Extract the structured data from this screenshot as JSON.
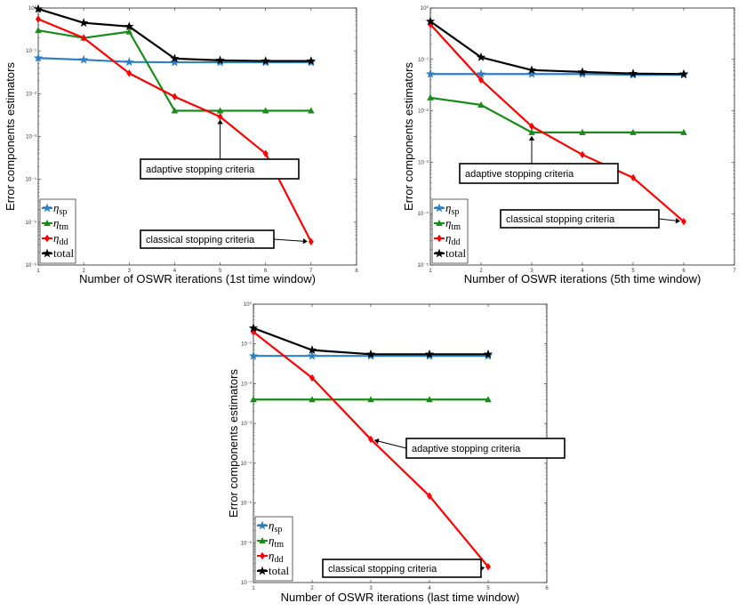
{
  "legend_labels": [
    {
      "symbol": "η",
      "sub": "sp",
      "color": "#2f7fc1",
      "marker": "star"
    },
    {
      "symbol": "η",
      "sub": "tm",
      "color": "#1a8a1a",
      "marker": "triangle"
    },
    {
      "symbol": "η",
      "sub": "dd",
      "color": "#ff0000",
      "marker": "diamond"
    },
    {
      "symbol": "",
      "sub": "total",
      "color": "#000000",
      "marker": "star"
    }
  ],
  "chart_data": [
    {
      "type": "line",
      "xlabel": "Number of OSWR iterations (1st time window)",
      "ylabel": "Error components estimators",
      "yscale": "log",
      "xlim": [
        1,
        8
      ],
      "ylim": [
        1e-06,
        1
      ],
      "x_ticks": [
        "1",
        "2",
        "3",
        "4",
        "5",
        "6",
        "7",
        "8"
      ],
      "y_ticks": [
        "10⁻⁶",
        "10⁻⁵",
        "10⁻⁴",
        "10⁻³",
        "10⁻²",
        "10⁻¹",
        "10⁰"
      ],
      "x": [
        1,
        2,
        3,
        4,
        5,
        6,
        7
      ],
      "series": [
        {
          "name": "sp",
          "values": [
            0.068,
            0.062,
            0.055,
            0.054,
            0.054,
            0.054,
            0.054
          ]
        },
        {
          "name": "tm",
          "values": [
            0.3,
            0.2,
            0.28,
            0.004,
            0.004,
            0.004,
            0.004
          ]
        },
        {
          "name": "dd",
          "values": [
            0.55,
            0.2,
            0.03,
            0.0085,
            0.0029,
            0.0004,
            3.5e-06
          ]
        },
        {
          "name": "total",
          "values": [
            0.95,
            0.45,
            0.37,
            0.066,
            0.06,
            0.058,
            0.058
          ]
        }
      ],
      "annotations": [
        {
          "text": "adaptive stopping criteria",
          "target": [
            5,
            0.003
          ]
        },
        {
          "text": "classical stopping criteria",
          "target": [
            7,
            3.5e-06
          ]
        }
      ]
    },
    {
      "type": "line",
      "xlabel": "Number of OSWR iterations (5th time window)",
      "ylabel": "Error components estimators",
      "yscale": "log",
      "xlim": [
        1,
        7
      ],
      "ylim": [
        1e-05,
        1
      ],
      "x_ticks": [
        "1",
        "2",
        "3",
        "4",
        "5",
        "6",
        "7"
      ],
      "y_ticks": [
        "10⁻⁵",
        "10⁻⁴",
        "10⁻³",
        "10⁻²",
        "10⁻¹",
        "10⁰"
      ],
      "x": [
        1,
        2,
        3,
        4,
        5,
        6
      ],
      "series": [
        {
          "name": "sp",
          "values": [
            0.052,
            0.052,
            0.052,
            0.052,
            0.05,
            0.05
          ]
        },
        {
          "name": "tm",
          "values": [
            0.018,
            0.013,
            0.0038,
            0.0038,
            0.0038,
            0.0038
          ]
        },
        {
          "name": "dd",
          "values": [
            0.48,
            0.04,
            0.005,
            0.0014,
            0.0005,
            7e-05
          ]
        },
        {
          "name": "total",
          "values": [
            0.55,
            0.11,
            0.062,
            0.057,
            0.053,
            0.052
          ]
        }
      ],
      "annotations": [
        {
          "text": "adaptive stopping criteria",
          "target": [
            3,
            0.0038
          ]
        },
        {
          "text": "classical stopping criteria",
          "target": [
            6,
            7e-05
          ]
        }
      ]
    },
    {
      "type": "line",
      "xlabel": "Number of OSWR iterations (last time window)",
      "ylabel": "Error components estimators",
      "yscale": "log",
      "xlim": [
        1,
        6
      ],
      "ylim": [
        1e-07,
        1
      ],
      "x_ticks": [
        "1",
        "2",
        "3",
        "4",
        "5",
        "6"
      ],
      "y_ticks": [
        "10⁻⁷",
        "10⁻⁶",
        "10⁻⁵",
        "10⁻⁴",
        "10⁻³",
        "10⁻²",
        "10⁻¹",
        "10⁰"
      ],
      "x": [
        1,
        2,
        3,
        4,
        5
      ],
      "series": [
        {
          "name": "sp",
          "values": [
            0.05,
            0.05,
            0.05,
            0.05,
            0.05
          ]
        },
        {
          "name": "tm",
          "values": [
            0.004,
            0.004,
            0.004,
            0.004,
            0.004
          ]
        },
        {
          "name": "dd",
          "values": [
            0.2,
            0.014,
            0.0004,
            1.5e-05,
            2.5e-07
          ]
        },
        {
          "name": "total",
          "values": [
            0.25,
            0.07,
            0.055,
            0.055,
            0.055
          ]
        }
      ],
      "annotations": [
        {
          "text": "adaptive stopping criteria",
          "target": [
            3,
            0.0004
          ]
        },
        {
          "text": "classical stopping criteria",
          "target": [
            5,
            2.5e-07
          ]
        }
      ]
    }
  ]
}
